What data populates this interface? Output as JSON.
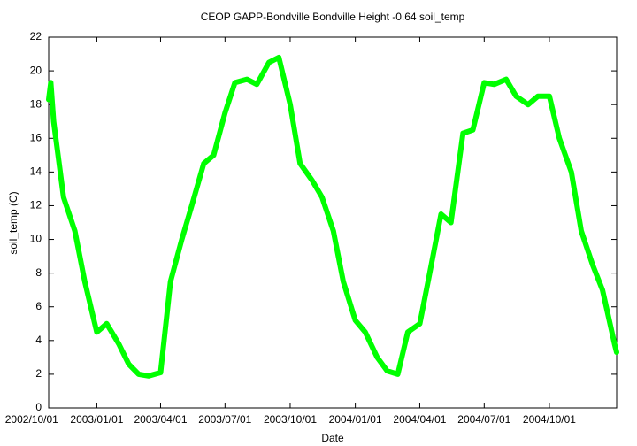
{
  "chart_data": {
    "type": "line",
    "title": "CEOP GAPP-Bondville Bondville Height -0.64 soil_temp",
    "xlabel": "Date",
    "ylabel": "soil_temp (C)",
    "x": [
      "2002/10/25",
      "2002/10/28",
      "2002/11/01",
      "2002/11/15",
      "2002/12/01",
      "2002/12/15",
      "2003/01/01",
      "2003/01/15",
      "2003/02/01",
      "2003/02/15",
      "2003/03/01",
      "2003/03/15",
      "2003/04/01",
      "2003/04/15",
      "2003/05/01",
      "2003/05/15",
      "2003/06/01",
      "2003/06/15",
      "2003/07/01",
      "2003/07/15",
      "2003/08/01",
      "2003/08/15",
      "2003/09/01",
      "2003/09/15",
      "2003/10/01",
      "2003/10/15",
      "2003/11/01",
      "2003/11/15",
      "2003/12/01",
      "2003/12/15",
      "2004/01/01",
      "2004/01/15",
      "2004/02/01",
      "2004/02/15",
      "2004/03/01",
      "2004/03/15",
      "2004/04/01",
      "2004/04/15",
      "2004/05/01",
      "2004/05/15",
      "2004/06/01",
      "2004/06/15",
      "2004/07/01",
      "2004/07/15",
      "2004/08/01",
      "2004/08/15",
      "2004/09/01",
      "2004/09/15",
      "2004/10/01",
      "2004/10/15",
      "2004/11/01",
      "2004/11/15",
      "2004/12/01",
      "2004/12/15",
      "2005/01/01",
      "2005/01/04"
    ],
    "series": [
      {
        "name": "soil_temp",
        "color": "#00ff00",
        "values": [
          18.3,
          19.3,
          17,
          12.5,
          10.5,
          7.5,
          4.5,
          5,
          3.8,
          2.6,
          2,
          1.9,
          2.1,
          7.5,
          10,
          12,
          14.5,
          15,
          17.5,
          19.3,
          19.5,
          19.2,
          20.5,
          20.8,
          18,
          14.5,
          13.5,
          12.5,
          10.5,
          7.5,
          5.2,
          4.5,
          3,
          2.2,
          2,
          4.5,
          5,
          8,
          11.5,
          11,
          16.3,
          16.5,
          19.3,
          19.2,
          19.5,
          18.5,
          18,
          18.5,
          18.5,
          16,
          14,
          10.5,
          8.5,
          7,
          3.8,
          3.3
        ]
      }
    ],
    "xlim": [
      "2002/10/25",
      "2005/01/04"
    ],
    "xticks": [
      "2002/10/01",
      "2003/01/01",
      "2003/04/01",
      "2003/07/01",
      "2003/10/01",
      "2004/01/01",
      "2004/04/01",
      "2004/07/01",
      "2004/10/01"
    ],
    "ylim": [
      0,
      22
    ],
    "yticks": [
      0,
      2,
      4,
      6,
      8,
      10,
      12,
      14,
      16,
      18,
      20,
      22
    ],
    "grid": false
  }
}
